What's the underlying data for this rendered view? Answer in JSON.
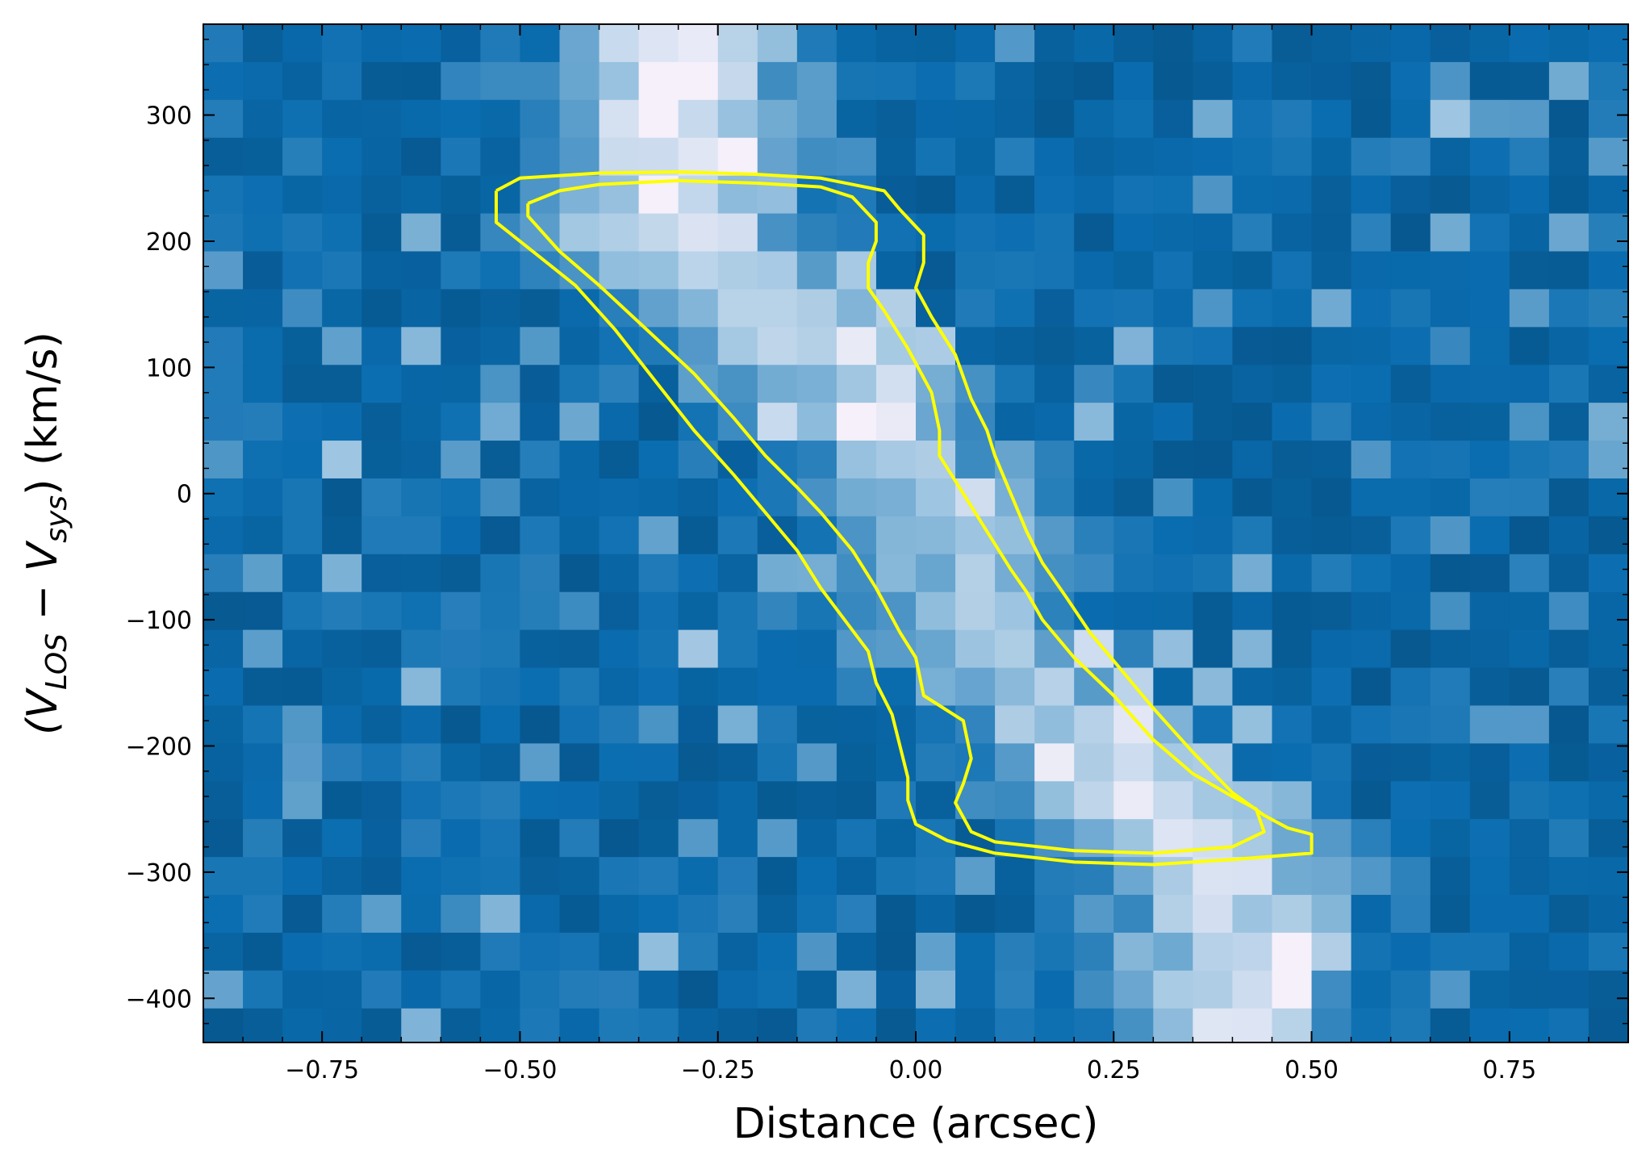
{
  "chart_data": {
    "type": "heatmap",
    "title": "",
    "xlabel": "Distance (arcsec)",
    "ylabel_parts": [
      "(V",
      "LOS",
      " − V",
      "sys",
      ") (km/s)"
    ],
    "xlim": [
      -0.9,
      0.9
    ],
    "ylim": [
      -435,
      372
    ],
    "x_ticks": [
      -0.75,
      -0.5,
      -0.25,
      0.0,
      0.25,
      0.5,
      0.75
    ],
    "x_tick_labels": [
      "−0.75",
      "−0.50",
      "−0.25",
      "0.00",
      "0.25",
      "0.50",
      "0.75"
    ],
    "y_ticks": [
      -400,
      -300,
      -200,
      -100,
      0,
      100,
      200,
      300
    ],
    "y_tick_labels": [
      "−400",
      "−300",
      "−200",
      "−100",
      "0",
      "100",
      "200",
      "300"
    ],
    "x_minor_step": 0.05,
    "y_minor_step": 20,
    "heatmap": {
      "colormap": "blue-to-white",
      "cell_width_arcsec": 0.05,
      "cell_height_kms": 30,
      "emission_ridge": [
        {
          "x": -0.3,
          "v": 200,
          "peak": 0.9
        },
        {
          "x": -0.2,
          "v": 150,
          "peak": 0.75
        },
        {
          "x": -0.05,
          "v": 60,
          "peak": 0.7
        },
        {
          "x": 0.05,
          "v": -20,
          "peak": 0.65
        },
        {
          "x": 0.05,
          "v": -100,
          "peak": 0.7
        },
        {
          "x": 0.2,
          "v": -180,
          "peak": 0.75
        },
        {
          "x": 0.3,
          "v": -260,
          "peak": 0.98
        },
        {
          "x": 0.4,
          "v": -285,
          "peak": 0.8
        }
      ],
      "colors": {
        "low": "#02385e",
        "mid": "#0a6db0",
        "high": "#9cc4e0",
        "peak": "#f5f0fa"
      }
    },
    "contours": [
      {
        "level": "outer",
        "color": "#ffff00",
        "points": [
          [
            -0.53,
            240
          ],
          [
            -0.5,
            250
          ],
          [
            -0.4,
            254
          ],
          [
            -0.3,
            255
          ],
          [
            -0.2,
            253
          ],
          [
            -0.12,
            250
          ],
          [
            -0.04,
            240
          ],
          [
            -0.02,
            225
          ],
          [
            0.01,
            205
          ],
          [
            0.01,
            183
          ],
          [
            0.0,
            163
          ],
          [
            0.02,
            140
          ],
          [
            0.05,
            110
          ],
          [
            0.07,
            75
          ],
          [
            0.09,
            50
          ],
          [
            0.1,
            30
          ],
          [
            0.12,
            0
          ],
          [
            0.14,
            -30
          ],
          [
            0.16,
            -55
          ],
          [
            0.19,
            -82
          ],
          [
            0.22,
            -110
          ],
          [
            0.26,
            -140
          ],
          [
            0.3,
            -170
          ],
          [
            0.35,
            -205
          ],
          [
            0.4,
            -237
          ],
          [
            0.44,
            -255
          ],
          [
            0.47,
            -265
          ],
          [
            0.5,
            -270
          ],
          [
            0.5,
            -285
          ],
          [
            0.4,
            -290
          ],
          [
            0.3,
            -294
          ],
          [
            0.2,
            -292
          ],
          [
            0.1,
            -285
          ],
          [
            0.04,
            -275
          ],
          [
            0.0,
            -262
          ],
          [
            -0.01,
            -243
          ],
          [
            -0.01,
            -225
          ],
          [
            -0.02,
            -200
          ],
          [
            -0.03,
            -175
          ],
          [
            -0.05,
            -150
          ],
          [
            -0.06,
            -125
          ],
          [
            -0.09,
            -100
          ],
          [
            -0.12,
            -75
          ],
          [
            -0.15,
            -45
          ],
          [
            -0.19,
            -15
          ],
          [
            -0.23,
            15
          ],
          [
            -0.28,
            50
          ],
          [
            -0.33,
            90
          ],
          [
            -0.38,
            130
          ],
          [
            -0.43,
            165
          ],
          [
            -0.48,
            190
          ],
          [
            -0.53,
            215
          ],
          [
            -0.53,
            240
          ]
        ]
      },
      {
        "level": "inner",
        "color": "#ffff00",
        "points": [
          [
            -0.49,
            230
          ],
          [
            -0.45,
            240
          ],
          [
            -0.4,
            245
          ],
          [
            -0.3,
            248
          ],
          [
            -0.2,
            246
          ],
          [
            -0.12,
            243
          ],
          [
            -0.08,
            235
          ],
          [
            -0.05,
            215
          ],
          [
            -0.05,
            200
          ],
          [
            -0.06,
            183
          ],
          [
            -0.06,
            163
          ],
          [
            -0.04,
            145
          ],
          [
            -0.01,
            115
          ],
          [
            0.02,
            80
          ],
          [
            0.03,
            50
          ],
          [
            0.03,
            30
          ],
          [
            0.06,
            0
          ],
          [
            0.09,
            -30
          ],
          [
            0.12,
            -60
          ],
          [
            0.14,
            -78
          ],
          [
            0.16,
            -100
          ],
          [
            0.2,
            -130
          ],
          [
            0.25,
            -160
          ],
          [
            0.3,
            -195
          ],
          [
            0.35,
            -222
          ],
          [
            0.4,
            -240
          ],
          [
            0.43,
            -250
          ],
          [
            0.44,
            -268
          ],
          [
            0.4,
            -280
          ],
          [
            0.3,
            -285
          ],
          [
            0.2,
            -283
          ],
          [
            0.1,
            -276
          ],
          [
            0.07,
            -268
          ],
          [
            0.05,
            -245
          ],
          [
            0.06,
            -230
          ],
          [
            0.07,
            -210
          ],
          [
            0.06,
            -180
          ],
          [
            0.01,
            -160
          ],
          [
            0.0,
            -130
          ],
          [
            -0.02,
            -110
          ],
          [
            -0.05,
            -75
          ],
          [
            -0.08,
            -45
          ],
          [
            -0.12,
            -15
          ],
          [
            -0.15,
            5
          ],
          [
            -0.19,
            30
          ],
          [
            -0.23,
            60
          ],
          [
            -0.28,
            95
          ],
          [
            -0.34,
            130
          ],
          [
            -0.4,
            165
          ],
          [
            -0.45,
            192
          ],
          [
            -0.49,
            220
          ],
          [
            -0.49,
            230
          ]
        ]
      }
    ]
  }
}
